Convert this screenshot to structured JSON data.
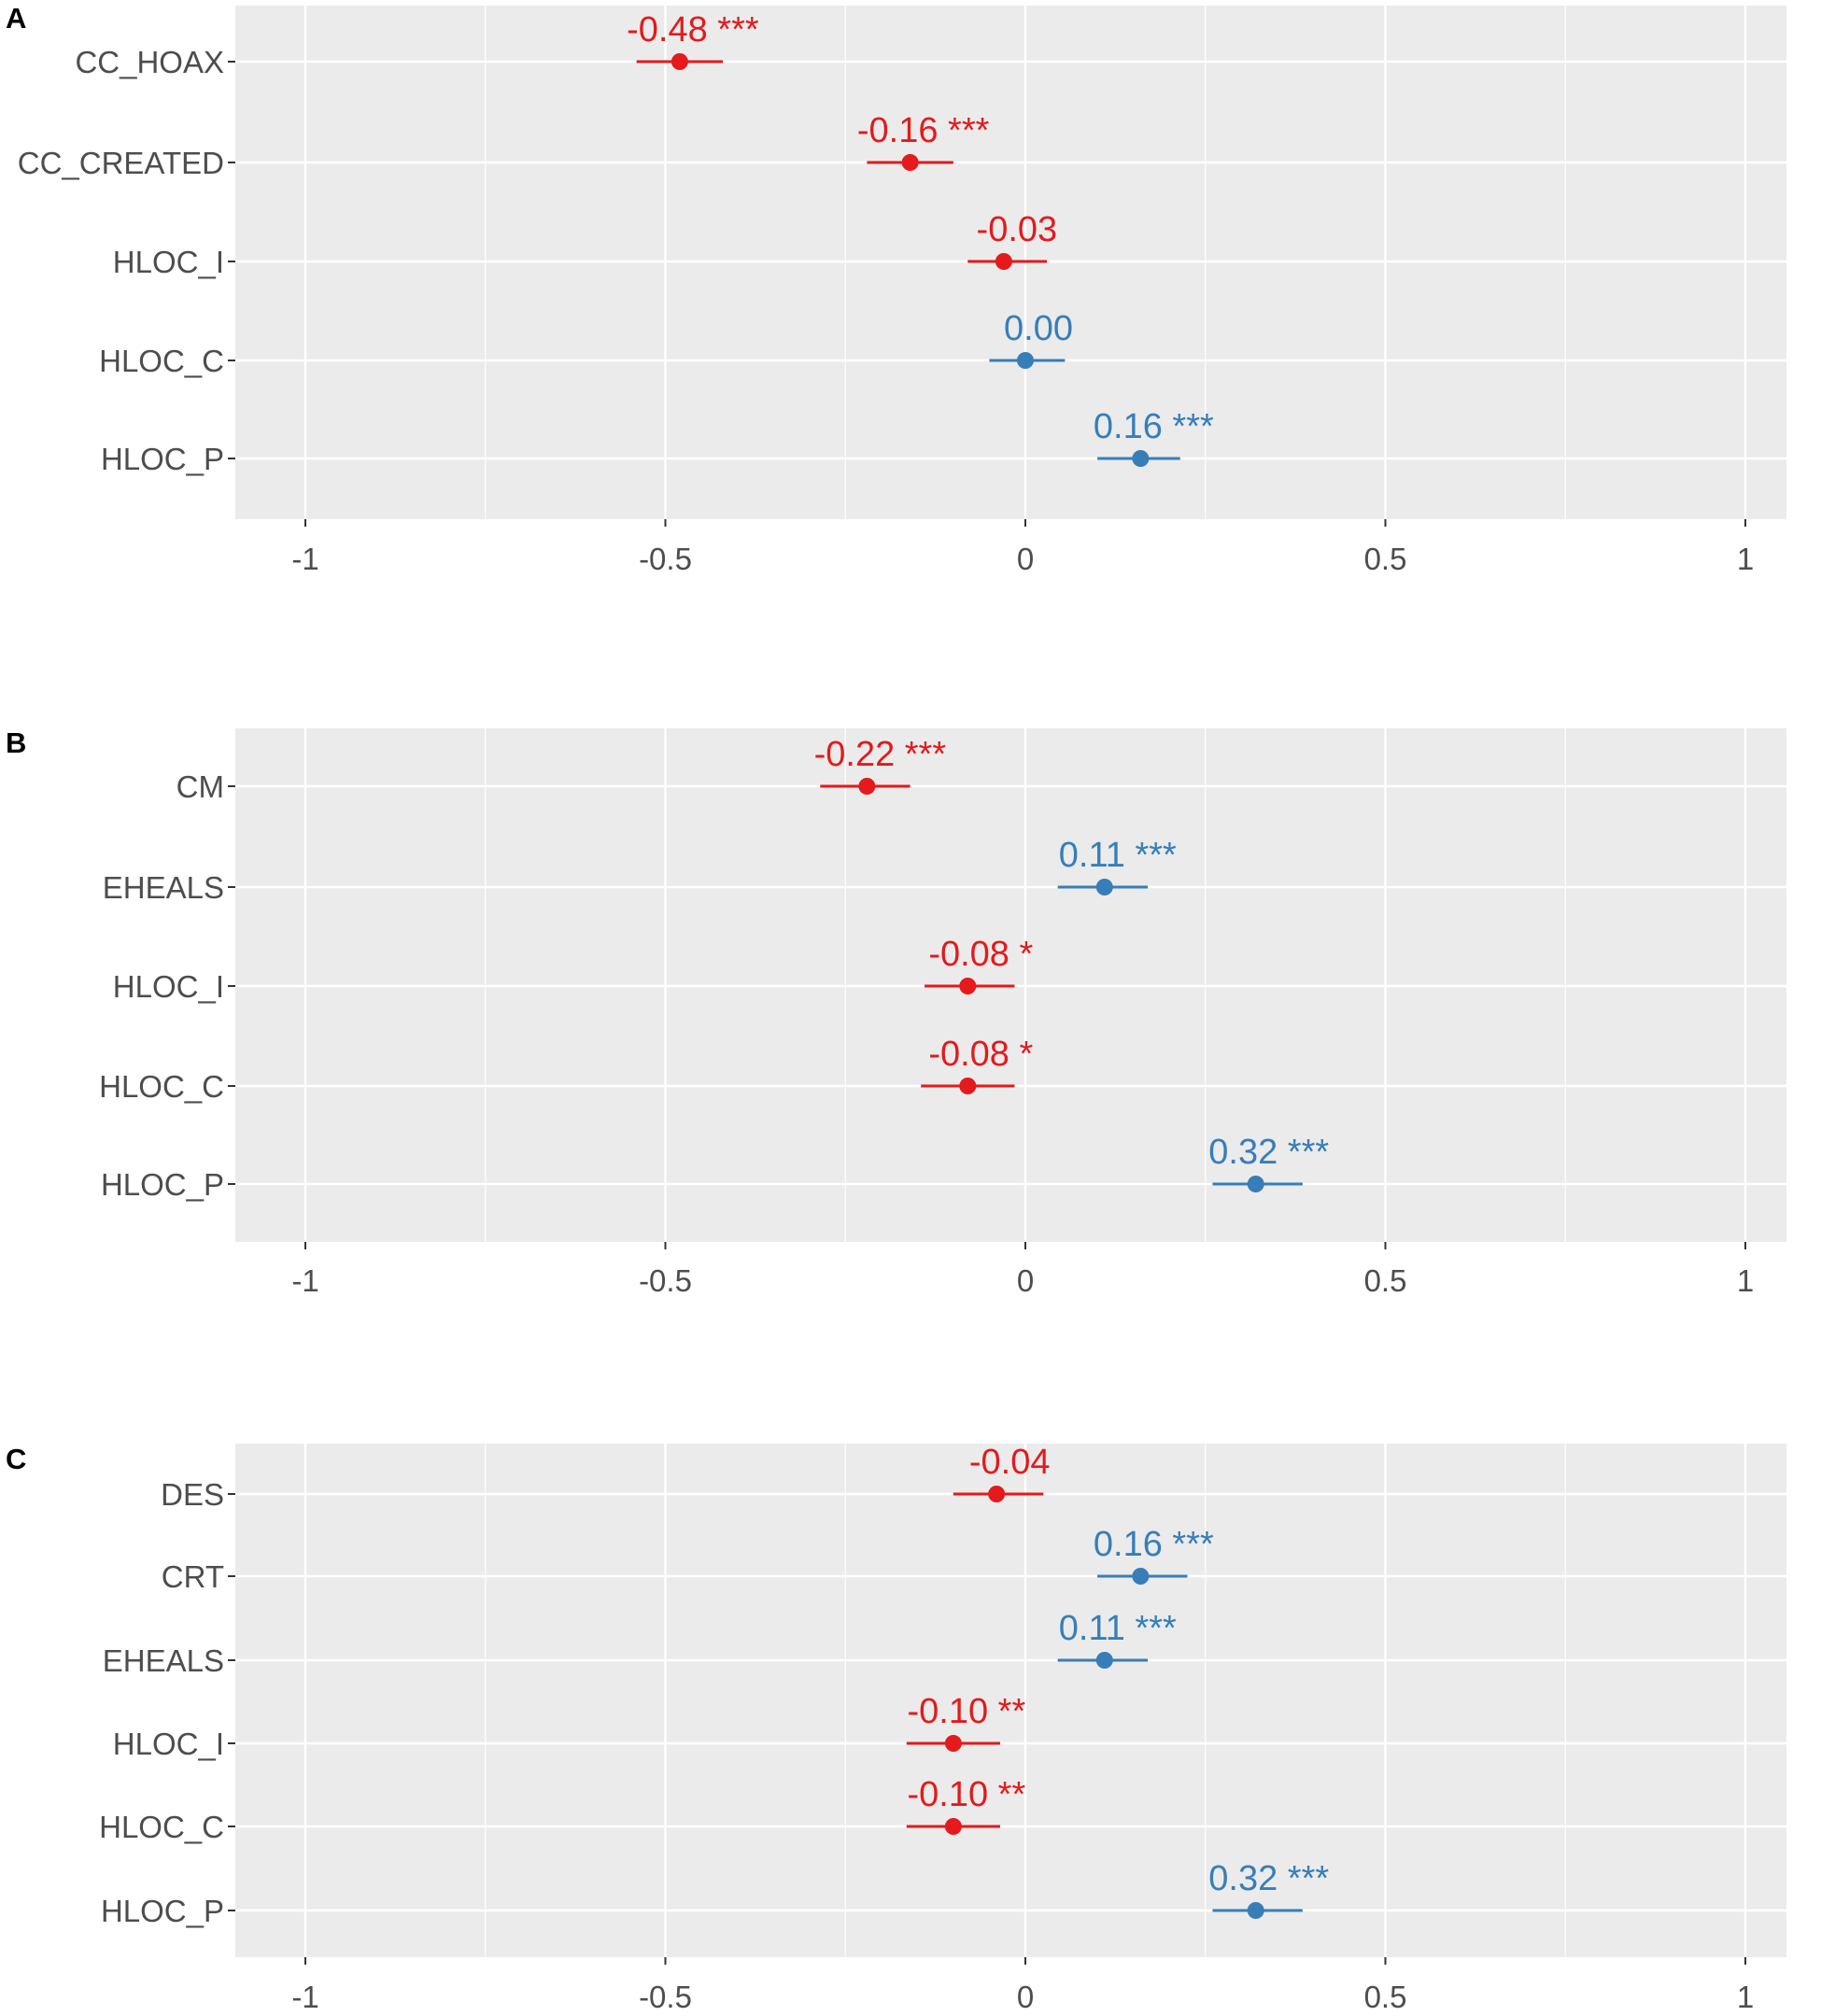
{
  "colors": {
    "negative": "#e41a1c",
    "positive": "#377eb8",
    "panel_bg": "#ebebeb",
    "grid": "#ffffff",
    "tick_text": "#4d4d4d"
  },
  "chart_data": [
    {
      "type": "scatter",
      "panel": "A",
      "xlim": [
        -1.1,
        1.1
      ],
      "xticks": [
        -1,
        -0.5,
        0,
        0.5,
        1
      ],
      "xtick_labels": [
        "-1",
        "-0.5",
        "0",
        "0.5",
        "1"
      ],
      "categories": [
        "CC_HOAX",
        "CC_CREATED",
        "HLOC_I",
        "HLOC_C",
        "HLOC_P"
      ],
      "values": [
        -0.48,
        -0.16,
        -0.03,
        0.0,
        0.16
      ],
      "ci_low": [
        -0.54,
        -0.22,
        -0.08,
        -0.05,
        0.1
      ],
      "ci_high": [
        -0.42,
        -0.1,
        0.03,
        0.055,
        0.215
      ],
      "labels": [
        "-0.48 ***",
        "-0.16 ***",
        "-0.03",
        "0.00",
        "0.16 ***"
      ],
      "sign": [
        "neg",
        "neg",
        "neg",
        "pos",
        "pos"
      ]
    },
    {
      "type": "scatter",
      "panel": "B",
      "xlim": [
        -1.1,
        1.1
      ],
      "xticks": [
        -1,
        -0.5,
        0,
        0.5,
        1
      ],
      "xtick_labels": [
        "-1",
        "-0.5",
        "0",
        "0.5",
        "1"
      ],
      "categories": [
        "CM",
        "EHEALS",
        "HLOC_I",
        "HLOC_C",
        "HLOC_P"
      ],
      "values": [
        -0.22,
        0.11,
        -0.08,
        -0.08,
        0.32
      ],
      "ci_low": [
        -0.285,
        0.045,
        -0.14,
        -0.145,
        0.26
      ],
      "ci_high": [
        -0.16,
        0.17,
        -0.015,
        -0.015,
        0.385
      ],
      "labels": [
        "-0.22 ***",
        "0.11 ***",
        "-0.08 *",
        "-0.08 *",
        "0.32 ***"
      ],
      "sign": [
        "neg",
        "pos",
        "neg",
        "neg",
        "pos"
      ]
    },
    {
      "type": "scatter",
      "panel": "C",
      "xlim": [
        -1.1,
        1.1
      ],
      "xticks": [
        -1,
        -0.5,
        0,
        0.5,
        1
      ],
      "xtick_labels": [
        "-1",
        "-0.5",
        "0",
        "0.5",
        "1"
      ],
      "categories": [
        "DES",
        "CRT",
        "EHEALS",
        "HLOC_I",
        "HLOC_C",
        "HLOC_P"
      ],
      "values": [
        -0.04,
        0.16,
        0.11,
        -0.1,
        -0.1,
        0.32
      ],
      "ci_low": [
        -0.1,
        0.1,
        0.045,
        -0.165,
        -0.165,
        0.26
      ],
      "ci_high": [
        0.025,
        0.225,
        0.17,
        -0.035,
        -0.035,
        0.385
      ],
      "labels": [
        "-0.04",
        "0.16 ***",
        "0.11 ***",
        "-0.10 **",
        "-0.10 **",
        "0.32 ***"
      ],
      "sign": [
        "neg",
        "pos",
        "pos",
        "neg",
        "neg",
        "pos"
      ]
    }
  ]
}
